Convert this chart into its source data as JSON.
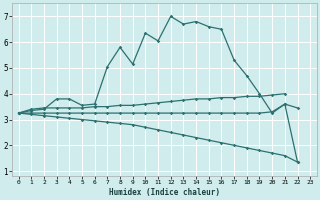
{
  "xlabel": "Humidex (Indice chaleur)",
  "bg_color": "#d0ecec",
  "grid_color": "#ffffff",
  "line_color": "#2d7070",
  "xlim": [
    -0.5,
    23.5
  ],
  "ylim": [
    0.8,
    7.5
  ],
  "xticks": [
    0,
    1,
    2,
    3,
    4,
    5,
    6,
    7,
    8,
    9,
    10,
    11,
    12,
    13,
    14,
    15,
    16,
    17,
    18,
    19,
    20,
    21,
    22,
    23
  ],
  "yticks": [
    1,
    2,
    3,
    4,
    5,
    6,
    7
  ],
  "lines": [
    {
      "x": [
        0,
        1,
        2,
        3,
        4,
        5,
        6,
        7,
        8,
        9,
        10,
        11,
        12,
        13,
        14,
        15,
        16,
        17,
        18,
        19,
        20,
        21,
        22
      ],
      "y": [
        3.25,
        3.35,
        3.4,
        3.8,
        3.8,
        3.55,
        3.6,
        5.05,
        5.8,
        5.15,
        6.35,
        6.05,
        7.0,
        6.7,
        6.8,
        6.6,
        6.5,
        5.3,
        4.7,
        4.0,
        3.25,
        3.6,
        3.45
      ]
    },
    {
      "x": [
        0,
        1,
        2,
        3,
        4,
        5,
        6,
        7,
        8,
        9,
        10,
        11,
        12,
        13,
        14,
        15,
        16,
        17,
        18,
        19,
        20,
        21
      ],
      "y": [
        3.25,
        3.4,
        3.45,
        3.45,
        3.45,
        3.45,
        3.5,
        3.5,
        3.55,
        3.55,
        3.6,
        3.65,
        3.7,
        3.75,
        3.8,
        3.8,
        3.85,
        3.85,
        3.9,
        3.9,
        3.95,
        4.0
      ]
    },
    {
      "x": [
        0,
        1,
        2,
        3,
        4,
        5,
        6,
        7,
        8,
        9,
        10,
        11,
        12,
        13,
        14,
        15,
        16,
        17,
        18,
        19,
        20,
        21,
        22
      ],
      "y": [
        3.25,
        3.2,
        3.15,
        3.1,
        3.05,
        3.0,
        2.95,
        2.9,
        2.85,
        2.8,
        2.7,
        2.6,
        2.5,
        2.4,
        2.3,
        2.2,
        2.1,
        2.0,
        1.9,
        1.8,
        1.7,
        1.6,
        1.35
      ]
    },
    {
      "x": [
        0,
        1,
        2,
        3,
        4,
        5,
        6,
        7,
        8,
        9,
        10,
        11,
        12,
        13,
        14,
        15,
        16,
        17,
        18,
        19,
        20,
        21,
        22
      ],
      "y": [
        3.25,
        3.25,
        3.25,
        3.25,
        3.25,
        3.25,
        3.25,
        3.25,
        3.25,
        3.25,
        3.25,
        3.25,
        3.25,
        3.25,
        3.25,
        3.25,
        3.25,
        3.25,
        3.25,
        3.25,
        3.3,
        3.6,
        1.35
      ]
    }
  ]
}
